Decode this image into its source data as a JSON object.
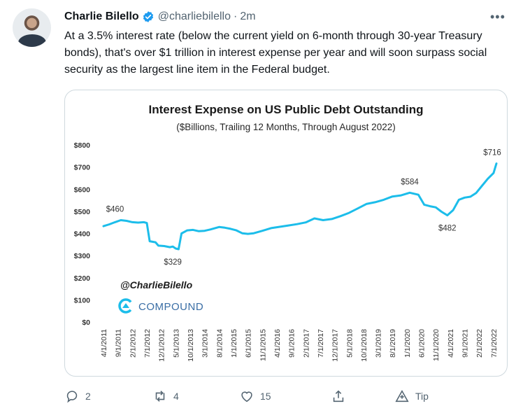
{
  "tweet": {
    "author_name": "Charlie Bilello",
    "handle": "@charliebilello",
    "separator": "·",
    "time": "2m",
    "text": "At a 3.5% interest rate (below the current yield on 6-month through 30-year Treasury bonds), that's over $1 trillion in interest expense per year and will soon surpass social security as the largest line item in the Federal budget."
  },
  "actions": {
    "reply_count": "2",
    "retweet_count": "4",
    "like_count": "15",
    "tip_label": "Tip"
  },
  "colors": {
    "line": "#1cbdea",
    "brand_blue": "#1d9bf0",
    "muted": "#536471"
  },
  "icons": [
    "verified-badge-icon",
    "more-icon",
    "reply-icon",
    "retweet-icon",
    "like-icon",
    "share-icon",
    "tip-icon",
    "compound-logo-icon"
  ],
  "chart_data": {
    "type": "line",
    "title": "Interest Expense on US Public Debt Outstanding",
    "subtitle": "($Billions, Trailing 12 Months, Through August 2022)",
    "watermark": "@CharlieBilello",
    "brand": "COMPOUND",
    "ylim": [
      0,
      800
    ],
    "y_ticks": [
      "$0",
      "$100",
      "$200",
      "$300",
      "$400",
      "$500",
      "$600",
      "$700",
      "$800"
    ],
    "x_ticks": [
      "4/1/2011",
      "9/1/2011",
      "2/1/2012",
      "7/1/2012",
      "12/1/2012",
      "5/1/2013",
      "10/1/2013",
      "3/1/2014",
      "8/1/2014",
      "1/1/2015",
      "6/1/2015",
      "11/1/2015",
      "4/1/2016",
      "9/1/2016",
      "2/1/2017",
      "7/1/2017",
      "12/1/2017",
      "5/1/2018",
      "10/1/2018",
      "3/1/2019",
      "8/1/2019",
      "1/1/2020",
      "6/1/2020",
      "11/1/2020",
      "4/1/2021",
      "9/1/2021",
      "2/1/2022",
      "7/1/2022"
    ],
    "annotations": [
      {
        "text": "$460",
        "x": "8/1/2011",
        "y": 460
      },
      {
        "text": "$329",
        "x": "4/1/2013",
        "y": 329
      },
      {
        "text": "$584",
        "x": "2/1/2020",
        "y": 584
      },
      {
        "text": "$482",
        "x": "3/1/2021",
        "y": 482
      },
      {
        "text": "$716",
        "x": "8/1/2022",
        "y": 716
      }
    ],
    "series": [
      {
        "points": [
          [
            "4/1/2011",
            433
          ],
          [
            "6/1/2011",
            441
          ],
          [
            "8/1/2011",
            451
          ],
          [
            "10/1/2011",
            460
          ],
          [
            "12/1/2011",
            457
          ],
          [
            "2/1/2012",
            451
          ],
          [
            "4/1/2012",
            449
          ],
          [
            "6/1/2012",
            451
          ],
          [
            "7/1/2012",
            447
          ],
          [
            "8/1/2012",
            365
          ],
          [
            "10/1/2012",
            360
          ],
          [
            "11/1/2012",
            345
          ],
          [
            "1/1/2013",
            343
          ],
          [
            "3/1/2013",
            338
          ],
          [
            "4/1/2013",
            341
          ],
          [
            "5/1/2013",
            332
          ],
          [
            "6/1/2013",
            329
          ],
          [
            "7/1/2013",
            400
          ],
          [
            "9/1/2013",
            414
          ],
          [
            "11/1/2013",
            416
          ],
          [
            "1/1/2014",
            410
          ],
          [
            "3/1/2014",
            412
          ],
          [
            "5/1/2014",
            418
          ],
          [
            "8/1/2014",
            429
          ],
          [
            "10/1/2014",
            426
          ],
          [
            "12/1/2014",
            421
          ],
          [
            "2/1/2015",
            414
          ],
          [
            "4/1/2015",
            401
          ],
          [
            "6/1/2015",
            398
          ],
          [
            "8/1/2015",
            401
          ],
          [
            "11/1/2015",
            412
          ],
          [
            "2/1/2016",
            424
          ],
          [
            "5/1/2016",
            430
          ],
          [
            "8/1/2016",
            436
          ],
          [
            "11/1/2016",
            442
          ],
          [
            "2/1/2017",
            450
          ],
          [
            "5/1/2017",
            468
          ],
          [
            "8/1/2017",
            460
          ],
          [
            "11/1/2017",
            465
          ],
          [
            "2/1/2018",
            478
          ],
          [
            "5/1/2018",
            493
          ],
          [
            "8/1/2018",
            513
          ],
          [
            "11/1/2018",
            533
          ],
          [
            "2/1/2019",
            541
          ],
          [
            "5/1/2019",
            552
          ],
          [
            "8/1/2019",
            567
          ],
          [
            "11/1/2019",
            572
          ],
          [
            "2/1/2020",
            584
          ],
          [
            "5/1/2020",
            575
          ],
          [
            "7/1/2020",
            530
          ],
          [
            "9/1/2020",
            523
          ],
          [
            "11/1/2020",
            518
          ],
          [
            "1/1/2021",
            498
          ],
          [
            "3/1/2021",
            482
          ],
          [
            "5/1/2021",
            505
          ],
          [
            "7/1/2021",
            552
          ],
          [
            "9/1/2021",
            562
          ],
          [
            "11/1/2021",
            566
          ],
          [
            "1/1/2022",
            583
          ],
          [
            "3/1/2022",
            615
          ],
          [
            "5/1/2022",
            647
          ],
          [
            "7/1/2022",
            673
          ],
          [
            "8/1/2022",
            716
          ]
        ]
      }
    ]
  }
}
